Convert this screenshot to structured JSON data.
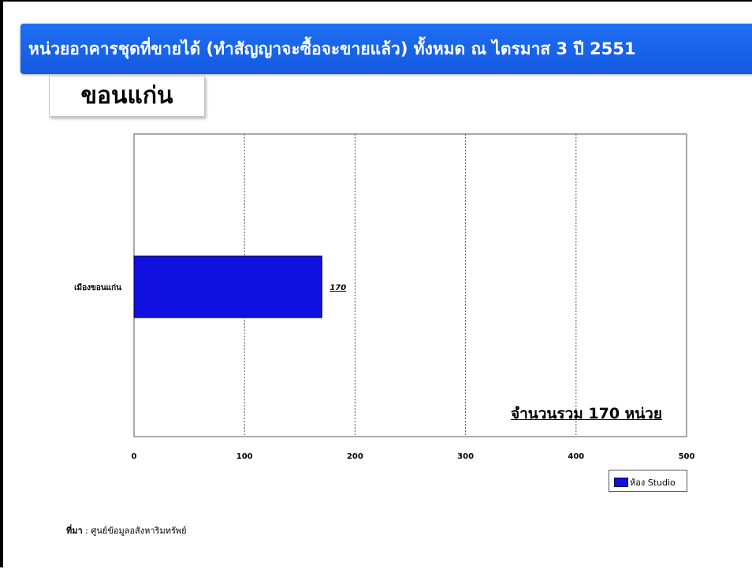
{
  "slide": {
    "title": "หน่วยอาคารชุดที่ขายได้ (ทำสัญญาจะซื้อจะขายแล้ว) ทั้งหมด ณ ไตรมาส 3 ปี 2551",
    "province": "ขอนแก่น",
    "total_label": "จำนวนรวม 170 หน่วย",
    "source_label": "ที่มา",
    "source_text": " : ศูนย์ข้อมูลอสังหาริมทรัพย์"
  },
  "colors": {
    "banner": "#1f6ff2",
    "bar": "#1010e0"
  },
  "chart_data": {
    "type": "bar",
    "orientation": "horizontal",
    "categories": [
      "เมืองขอนแก่น"
    ],
    "series": [
      {
        "name": "ห้อง Studio",
        "values": [
          170
        ]
      }
    ],
    "data_labels": [
      "170"
    ],
    "xlim": [
      0,
      500
    ],
    "xticks": [
      0,
      100,
      200,
      300,
      400,
      500
    ],
    "grid": "vertical dashed",
    "legend": "bottom-right",
    "title": "",
    "xlabel": "",
    "ylabel": ""
  }
}
